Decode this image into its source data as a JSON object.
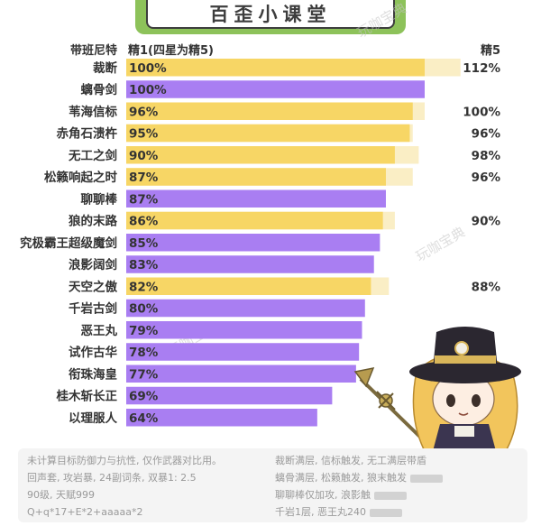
{
  "banner": {
    "title": "百歪小课堂"
  },
  "watermarks": [
    "玩咖宝典",
    "玩咖宝典",
    "玩咖宝典"
  ],
  "chart_data": {
    "type": "bar",
    "orientation": "horizontal",
    "title": "",
    "category_header": "带班尼特",
    "series_headers": [
      "精1(四星为精5)",
      "精5"
    ],
    "colors": {
      "four_star": "#a97ef2",
      "five_star": "#f7d665",
      "refine5": "#faeec5"
    },
    "xlim": [
      0,
      112
    ],
    "categories": [
      "裁断",
      "螭骨剑",
      "苇海信标",
      "赤角石溃杵",
      "无工之剑",
      "松籁响起之时",
      "聊聊棒",
      "狼的末路",
      "究极霸王超级魔剑",
      "浪影阔剑",
      "天空之傲",
      "千岩古剑",
      "恶王丸",
      "试作古华",
      "衔珠海皇",
      "桂木斩长正",
      "以理服人"
    ],
    "rarity": [
      "five",
      "four",
      "five",
      "five",
      "five",
      "five",
      "four",
      "five",
      "four",
      "four",
      "five",
      "four",
      "four",
      "four",
      "four",
      "four",
      "four"
    ],
    "series": [
      {
        "name": "精1(四星为精5)",
        "values": [
          100,
          100,
          96,
          95,
          90,
          87,
          87,
          86,
          85,
          83,
          82,
          80,
          79,
          78,
          77,
          69,
          64
        ],
        "labels": [
          "100%",
          "100%",
          "96%",
          "95%",
          "90%",
          "87%",
          "87%",
          "86%",
          "85%",
          "83%",
          "82%",
          "80%",
          "79%",
          "78%",
          "77%",
          "69%",
          "64%"
        ]
      },
      {
        "name": "精5",
        "values": [
          112,
          null,
          100,
          96,
          98,
          96,
          null,
          90,
          null,
          null,
          88,
          null,
          null,
          null,
          null,
          null,
          null
        ],
        "labels": [
          "112%",
          "",
          "100%",
          "96%",
          "98%",
          "96%",
          "",
          "90%",
          "",
          "",
          "88%",
          "",
          "",
          "",
          "",
          "",
          ""
        ]
      }
    ]
  },
  "notes": {
    "left": [
      "未计算目标防御力与抗性, 仅作武器对比用。",
      "回声套, 攻岩暴, 24副词条, 双暴1: 2.5",
      "90级, 天赋999",
      "Q+q*17+E*2+aaaaa*2"
    ],
    "right": [
      "裁断满层, 信标触发, 无工满层带盾",
      "螭骨满层, 松籁触发, 狼末触发",
      "聊聊棒仅加攻, 浪影触",
      "千岩1层, 恶王丸240"
    ]
  }
}
